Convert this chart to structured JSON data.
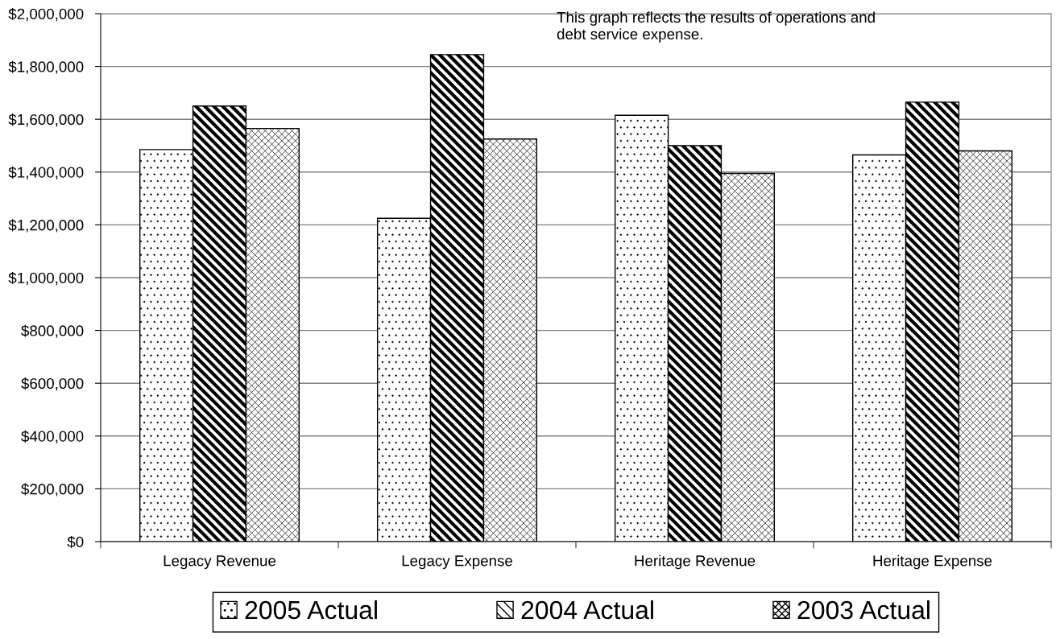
{
  "chart_data": {
    "type": "bar",
    "categories": [
      "Legacy Revenue",
      "Legacy Expense",
      "Heritage Revenue",
      "Heritage Expense"
    ],
    "series": [
      {
        "name": "2005 Actual",
        "color": "#000000",
        "values": [
          1485000,
          1225000,
          1615000,
          1465000
        ]
      },
      {
        "name": "2004 Actual",
        "color": "#000000",
        "values": [
          1650000,
          1845000,
          1500000,
          1665000
        ]
      },
      {
        "name": "2003 Actual",
        "color": "#000000",
        "values": [
          1565000,
          1525000,
          1395000,
          1480000
        ]
      }
    ],
    "ylim": [
      0,
      2000000
    ],
    "yticks": [
      {
        "value": 0,
        "label": "$0"
      },
      {
        "value": 200000,
        "label": "$200,000"
      },
      {
        "value": 400000,
        "label": "$400,000"
      },
      {
        "value": 600000,
        "label": "$600,000"
      },
      {
        "value": 800000,
        "label": "$800,000"
      },
      {
        "value": 1000000,
        "label": "$1,000,000"
      },
      {
        "value": 1200000,
        "label": "$1,200,000"
      },
      {
        "value": 1400000,
        "label": "$1,400,000"
      },
      {
        "value": 1600000,
        "label": "$1,600,000"
      },
      {
        "value": 1800000,
        "label": "$1,800,000"
      },
      {
        "value": 2000000,
        "label": "$2,000,000"
      }
    ],
    "grid": "y",
    "legend": "bottom",
    "annotations": [
      "This graph reflects the results of operations and\ndebt service expense."
    ]
  }
}
